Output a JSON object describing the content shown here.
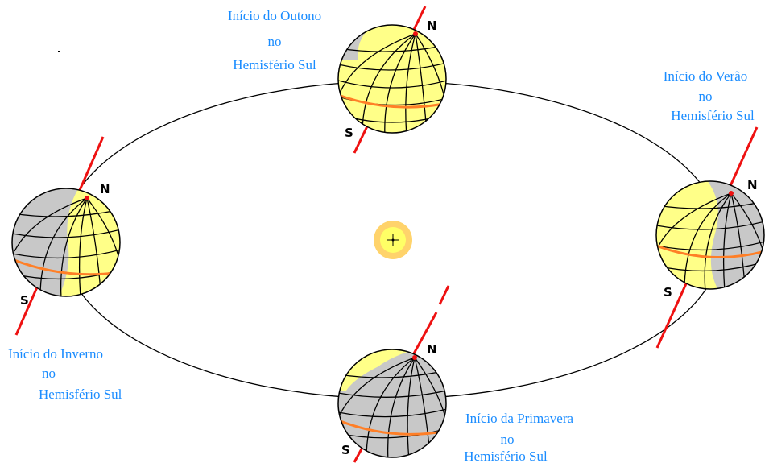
{
  "colors": {
    "caption_text": "#1a8cff",
    "axis_line": "#ee1111",
    "equator_line": "#ff7f27",
    "day_side": "#ffff88",
    "night_side": "#c8c8c8",
    "sun_outer": "#ffd36b",
    "sun_inner": "#ffff66",
    "orbit": "#000000"
  },
  "sun": {
    "icon": "sun-icon"
  },
  "seasons": {
    "autumn": {
      "line1": "Início do Outono",
      "line2": "no",
      "line3": "Hemisfério Sul",
      "north": "N",
      "south": "S"
    },
    "summer": {
      "line1": "Início do Verão",
      "line2": "no",
      "line3": "Hemisfério Sul",
      "north": "N",
      "south": "S"
    },
    "winter": {
      "line1": "Início do Inverno",
      "line2": "no",
      "line3": "Hemisfério Sul",
      "north": "N",
      "south": "S"
    },
    "spring": {
      "line1": "Início da Primavera",
      "line2": "no",
      "line3": "Hemisfério Sul",
      "north": "N",
      "south": "S"
    }
  }
}
